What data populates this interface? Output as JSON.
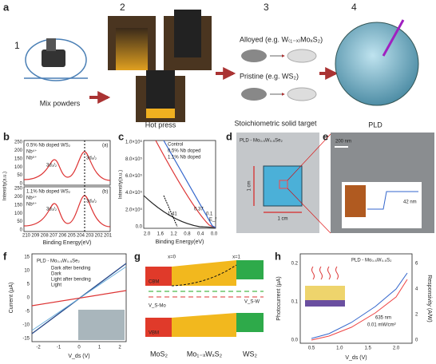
{
  "a": {
    "label": "a",
    "steps": [
      "1",
      "2",
      "3",
      "4"
    ],
    "mix": "Mix powders",
    "hot_press": "Hot press",
    "alloyed": "Alloyed (e.g. W₍₁₋ₓ₎MoₓS₂)",
    "pristine": "Pristine (e.g. WS₂)",
    "target": "Stoichiometric solid target",
    "pld": "PLD"
  },
  "b": {
    "label": "b",
    "ylabel": "Intensity(a.u.)",
    "xlabel": "Binding Energy(eV)",
    "xticks": [
      "210",
      "209",
      "208",
      "207",
      "206",
      "205",
      "204",
      "203",
      "202",
      "201"
    ],
    "top": {
      "tag": "(a)",
      "legend": [
        "0.5% Nb doped WS₂",
        "Nb⁴⁺",
        "Nb⁵⁺"
      ],
      "yticks": [
        "250",
        "200",
        "150",
        "100",
        "50",
        "0"
      ],
      "peaks": [
        "3d₃/₂",
        "3d₅/₂"
      ]
    },
    "bottom": {
      "tag": "(b)",
      "legend": [
        "1.1% Nb doped WS₂",
        "Nb⁴⁺",
        "Nb⁵⁺"
      ],
      "yticks": [
        "250",
        "200",
        "150",
        "100",
        "50",
        "0"
      ],
      "peaks": [
        "3d₃/₂",
        "3d₅/₂"
      ]
    }
  },
  "c": {
    "label": "c",
    "ylabel": "Intensity(a.u.)",
    "xlabel": "Binding Energy(eV)",
    "yticks": [
      "1.0×10⁶",
      "8.0×10⁵",
      "6.0×10⁵",
      "4.0×10⁵",
      "2.0×10⁵",
      "0.0"
    ],
    "xticks": [
      "2.0",
      "1.6",
      "1.2",
      "0.8",
      "0.4",
      "0.0"
    ],
    "legend": [
      "Control",
      "0.5% Nb doped",
      "1.1% Nb doped"
    ],
    "annotations": [
      "1.41",
      "0.37",
      "0.1",
      "E_f"
    ]
  },
  "d": {
    "label": "d",
    "title": "PLD - Mo₀.₅W₀.₅Se₂",
    "height": "1 cm",
    "width": "1 cm"
  },
  "e": {
    "label": "e",
    "scale": "200 nm",
    "step": "42 nm"
  },
  "f": {
    "label": "f",
    "title": "PLD - Mo₀.₅W₀.₅Se₂",
    "ylabel": "Current (μA)",
    "xlabel": "V_ds (V)",
    "yticks": [
      "15",
      "10",
      "5",
      "0",
      "-5",
      "-10",
      "-15"
    ],
    "xticks": [
      "-2",
      "-1",
      "0",
      "1",
      "2"
    ],
    "legend": [
      "Dark after bending",
      "Dark",
      "Light after bending",
      "Light"
    ]
  },
  "g": {
    "label": "g",
    "x0": "x=0",
    "x1": "x=1",
    "cbm": "CBM",
    "vbm": "VBM",
    "vsmo": "V_S-Mo",
    "vsw": "V_S-W",
    "materials": [
      "MoS₂",
      "Mo₁₋ₓWₓS₂",
      "WS₂"
    ]
  },
  "h": {
    "label": "h",
    "title": "PLD - Mo₀.₅W₀.₅S₂",
    "ylabel": "Photocurrent (μA)",
    "y2label": "Responsivity (A/W)",
    "xlabel": "V_ds (V)",
    "yticks": [
      "0.2",
      "0.1",
      "0.0"
    ],
    "y2ticks": [
      "6",
      "4",
      "2",
      "0"
    ],
    "xticks": [
      "0.5",
      "1.0",
      "1.5",
      "2.0"
    ],
    "legend": [
      "635 nm",
      "0.01 mW/cm²"
    ]
  }
}
